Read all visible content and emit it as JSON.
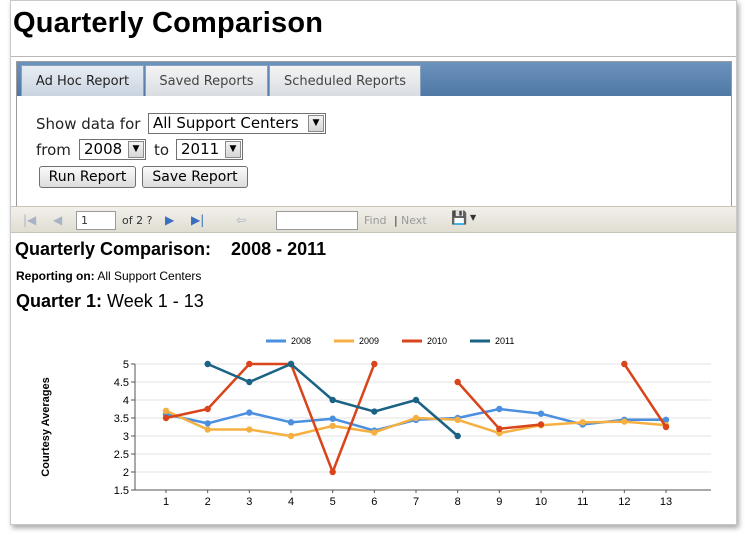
{
  "page": {
    "title": "Quarterly Comparison"
  },
  "tabs": [
    {
      "label": "Ad Hoc Report",
      "active": true
    },
    {
      "label": "Saved Reports",
      "active": false
    },
    {
      "label": "Scheduled Reports",
      "active": false
    }
  ],
  "form": {
    "show_label": "Show data for",
    "show_value": "All Support Centers",
    "from_label": "from",
    "from_value": "2008",
    "to_label": "to",
    "to_value": "2011",
    "run_button": "Run Report",
    "save_button": "Save Report"
  },
  "toolbar": {
    "page_value": "1",
    "page_of": "of 2 ?",
    "find_label": "Find",
    "separator": "|",
    "next_label": "Next",
    "icons": [
      "first-page-icon",
      "previous-page-icon",
      "next-page-icon",
      "last-page-icon",
      "back-icon",
      "export-save-icon",
      "dropdown-caret-icon"
    ]
  },
  "report": {
    "title": "Quarterly Comparison:",
    "range": "2008 - 2011",
    "reporting_on_label": "Reporting on:",
    "reporting_on_value": "All Support Centers",
    "quarter_label": "Quarter 1:",
    "quarter_value": "Week 1 - 13"
  },
  "chart_data": {
    "type": "line",
    "title": "",
    "xlabel": "",
    "ylabel": "Courtesy Averages",
    "x": [
      1,
      2,
      3,
      4,
      5,
      6,
      7,
      8,
      9,
      10,
      11,
      12,
      13
    ],
    "ylim": [
      1.5,
      5
    ],
    "yticks": [
      1.5,
      2,
      2.5,
      3,
      3.5,
      4,
      4.5,
      5
    ],
    "legend_position": "top",
    "grid": true,
    "series": [
      {
        "name": "2008",
        "color": "#4a8fe0",
        "values": [
          3.6,
          3.35,
          3.65,
          3.38,
          3.48,
          3.15,
          3.45,
          3.5,
          3.75,
          3.62,
          3.32,
          3.45,
          3.45
        ]
      },
      {
        "name": "2009",
        "color": "#f5b041",
        "values": [
          3.7,
          3.18,
          3.18,
          3.0,
          3.28,
          3.1,
          3.5,
          3.45,
          3.08,
          3.3,
          3.38,
          3.4,
          3.3
        ]
      },
      {
        "name": "2010",
        "color": "#d9441a",
        "values": [
          3.5,
          3.75,
          5.0,
          5.0,
          2.0,
          5.0,
          null,
          4.5,
          3.2,
          3.32,
          null,
          5.0,
          3.25
        ]
      },
      {
        "name": "2011",
        "color": "#1a6385",
        "values": [
          null,
          5.0,
          4.5,
          5.0,
          4.0,
          3.68,
          4.0,
          3.0,
          null,
          null,
          null,
          null,
          null
        ]
      }
    ]
  }
}
